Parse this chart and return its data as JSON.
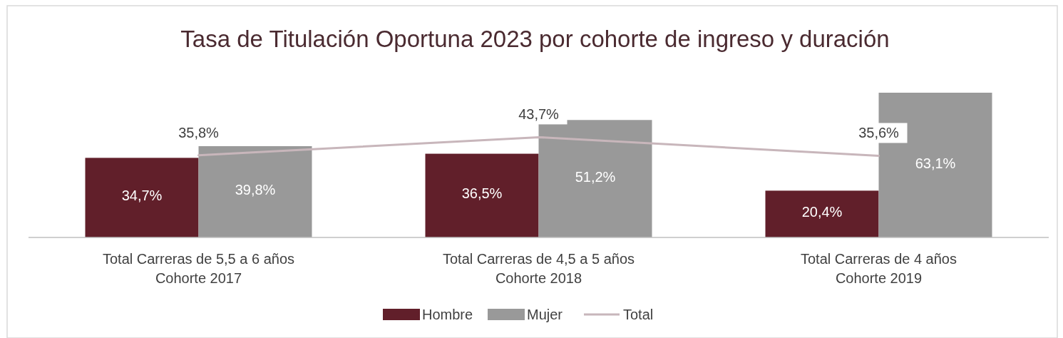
{
  "chart_data": {
    "type": "bar",
    "title": "Tasa de Titulación Oportuna 2023 por cohorte de ingreso y duración",
    "categories": [
      "Total Carreras de 5,5 a 6 años\nCohorte 2017",
      "Total Carreras de 4,5 a 5 años\nCohorte 2018",
      "Total Carreras de 4 años\nCohorte 2019"
    ],
    "series": [
      {
        "name": "Hombre",
        "color": "#611f2a",
        "values": [
          34.7,
          36.5,
          20.4
        ],
        "value_labels": [
          "34,7%",
          "36,5%",
          "20,4%"
        ]
      },
      {
        "name": "Mujer",
        "color": "#999999",
        "values": [
          39.8,
          51.2,
          63.1
        ],
        "value_labels": [
          "39,8%",
          "51,2%",
          "63,1%"
        ]
      },
      {
        "name": "Total",
        "type": "line",
        "color": "#c8b6bb",
        "values": [
          35.8,
          43.7,
          35.6
        ],
        "value_labels": [
          "35,8%",
          "43,7%",
          "35,6%"
        ]
      }
    ],
    "legend": "bottom",
    "grid": false
  }
}
